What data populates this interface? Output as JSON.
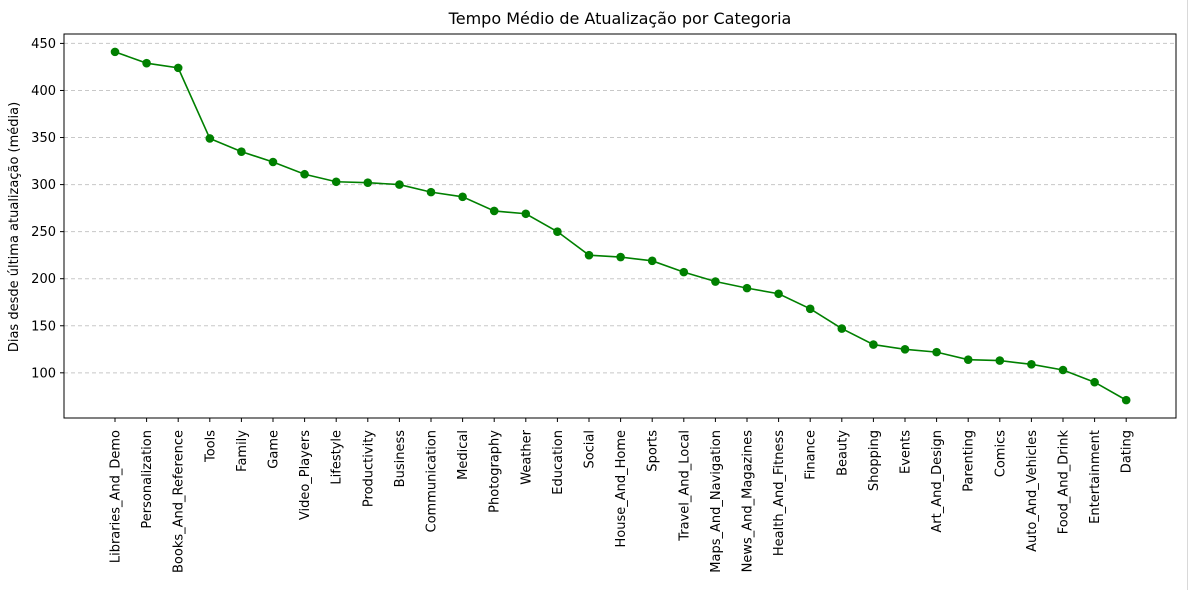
{
  "chart_data": {
    "type": "line",
    "title": "Tempo Médio de Atualização por Categoria",
    "xlabel": "",
    "ylabel": "Dias desde última atualização (média)",
    "ylim": [
      52,
      460
    ],
    "yticks": [
      100,
      150,
      200,
      250,
      300,
      350,
      400,
      450
    ],
    "grid": "y-dashed",
    "line_color": "#008000",
    "grid_color": "#c8c8c8",
    "categories": [
      "Libraries_And_Demo",
      "Personalization",
      "Books_And_Reference",
      "Tools",
      "Family",
      "Game",
      "Video_Players",
      "Lifestyle",
      "Productivity",
      "Business",
      "Communication",
      "Medical",
      "Photography",
      "Weather",
      "Education",
      "Social",
      "House_And_Home",
      "Sports",
      "Travel_And_Local",
      "Maps_And_Navigation",
      "News_And_Magazines",
      "Health_And_Fitness",
      "Finance",
      "Beauty",
      "Shopping",
      "Events",
      "Art_And_Design",
      "Parenting",
      "Comics",
      "Auto_And_Vehicles",
      "Food_And_Drink",
      "Entertainment",
      "Dating"
    ],
    "values": [
      441,
      429,
      424,
      349,
      335,
      324,
      311,
      303,
      302,
      300,
      292,
      287,
      272,
      269,
      250,
      225,
      223,
      219,
      207,
      197,
      190,
      184,
      168,
      147,
      130,
      125,
      122,
      114,
      113,
      109,
      103,
      90,
      71
    ]
  }
}
